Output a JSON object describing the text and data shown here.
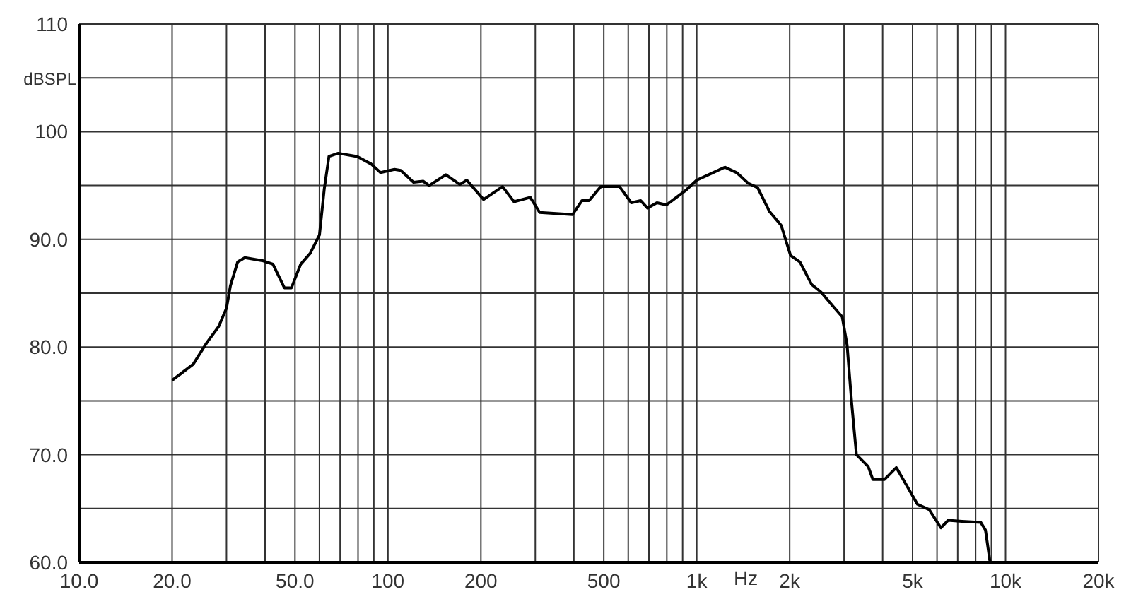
{
  "chart_data": {
    "type": "line",
    "xlabel": "Hz",
    "ylabel": "dBSPL",
    "log": "x",
    "grid": true,
    "marker": "none",
    "line_style": "solid",
    "legend": false,
    "xlim": [
      10,
      20000
    ],
    "ylim": [
      60,
      110
    ],
    "xticks": [
      {
        "value": 10,
        "label": "10.0"
      },
      {
        "value": 20,
        "label": "20.0"
      },
      {
        "value": 30,
        "label": null
      },
      {
        "value": 40,
        "label": null
      },
      {
        "value": 50,
        "label": "50.0"
      },
      {
        "value": 60,
        "label": null
      },
      {
        "value": 70,
        "label": null
      },
      {
        "value": 80,
        "label": null
      },
      {
        "value": 90,
        "label": null
      },
      100,
      200,
      {
        "value": 300,
        "label": null
      },
      {
        "value": 400,
        "label": null
      },
      500,
      {
        "value": 600,
        "label": null
      },
      {
        "value": 700,
        "label": null
      },
      {
        "value": 800,
        "label": null
      },
      {
        "value": 900,
        "label": null
      },
      {
        "value": 1000,
        "label": "1k"
      },
      {
        "value": 2000,
        "label": "2k"
      },
      {
        "value": 3000,
        "label": null
      },
      {
        "value": 4000,
        "label": null
      },
      {
        "value": 5000,
        "label": "5k"
      },
      {
        "value": 6000,
        "label": null
      },
      {
        "value": 7000,
        "label": null
      },
      {
        "value": 8000,
        "label": null
      },
      {
        "value": 9000,
        "label": null
      },
      {
        "value": 10000,
        "label": "10k"
      },
      {
        "value": 20000,
        "label": "20k"
      }
    ],
    "yticks": [
      {
        "value": 60,
        "label": "60.0"
      },
      {
        "value": 65,
        "label": null
      },
      {
        "value": 70,
        "label": "70.0"
      },
      {
        "value": 75,
        "label": null
      },
      {
        "value": 80,
        "label": "80.0"
      },
      {
        "value": 85,
        "label": null
      },
      {
        "value": 90,
        "label": "90.0"
      },
      {
        "value": 95,
        "label": null
      },
      100,
      {
        "value": 105,
        "label": null
      },
      110
    ],
    "series": [
      {
        "color": "#000000",
        "x": [
          20,
          23.4,
          25.9,
          28.3,
          30,
          30.9,
          32.6,
          34.4,
          39.5,
          42.4,
          46.2,
          48.7,
          52.2,
          56,
          60,
          62.2,
          64.4,
          69,
          79.4,
          88.2,
          94.6,
          105,
          110,
          121,
          130,
          136,
          154,
          171,
          180,
          204,
          235,
          256,
          289,
          310,
          396,
          425,
          448,
          489,
          562,
          614,
          658,
          693,
          743,
          797,
          917,
          1000,
          1130,
          1233,
          1346,
          1469,
          1575,
          1719,
          1877,
          2013,
          2159,
          2357,
          2527,
          2760,
          2959,
          3068,
          3177,
          3290,
          3591,
          3718,
          4057,
          4429,
          5185,
          5659,
          6177,
          6514,
          7227,
          8318,
          8610,
          8913
        ],
        "values": [
          76.9,
          78.4,
          80.4,
          81.9,
          83.6,
          85.7,
          87.9,
          88.3,
          88.0,
          87.7,
          85.5,
          85.5,
          87.7,
          88.7,
          90.4,
          94.7,
          97.7,
          98.0,
          97.7,
          97.0,
          96.2,
          96.5,
          96.4,
          95.3,
          95.4,
          95.0,
          96.0,
          95.1,
          95.5,
          93.7,
          94.9,
          93.5,
          93.9,
          92.5,
          92.3,
          93.6,
          93.6,
          94.9,
          94.9,
          93.4,
          93.6,
          92.9,
          93.4,
          93.2,
          94.5,
          95.5,
          96.2,
          96.7,
          96.2,
          95.2,
          94.8,
          92.6,
          91.3,
          88.5,
          87.9,
          85.8,
          85.1,
          83.8,
          82.8,
          80.2,
          74.7,
          70.0,
          68.9,
          67.7,
          67.7,
          68.8,
          65.4,
          64.9,
          63.2,
          63.9,
          63.8,
          63.7,
          63.0,
          60.0
        ]
      }
    ]
  }
}
